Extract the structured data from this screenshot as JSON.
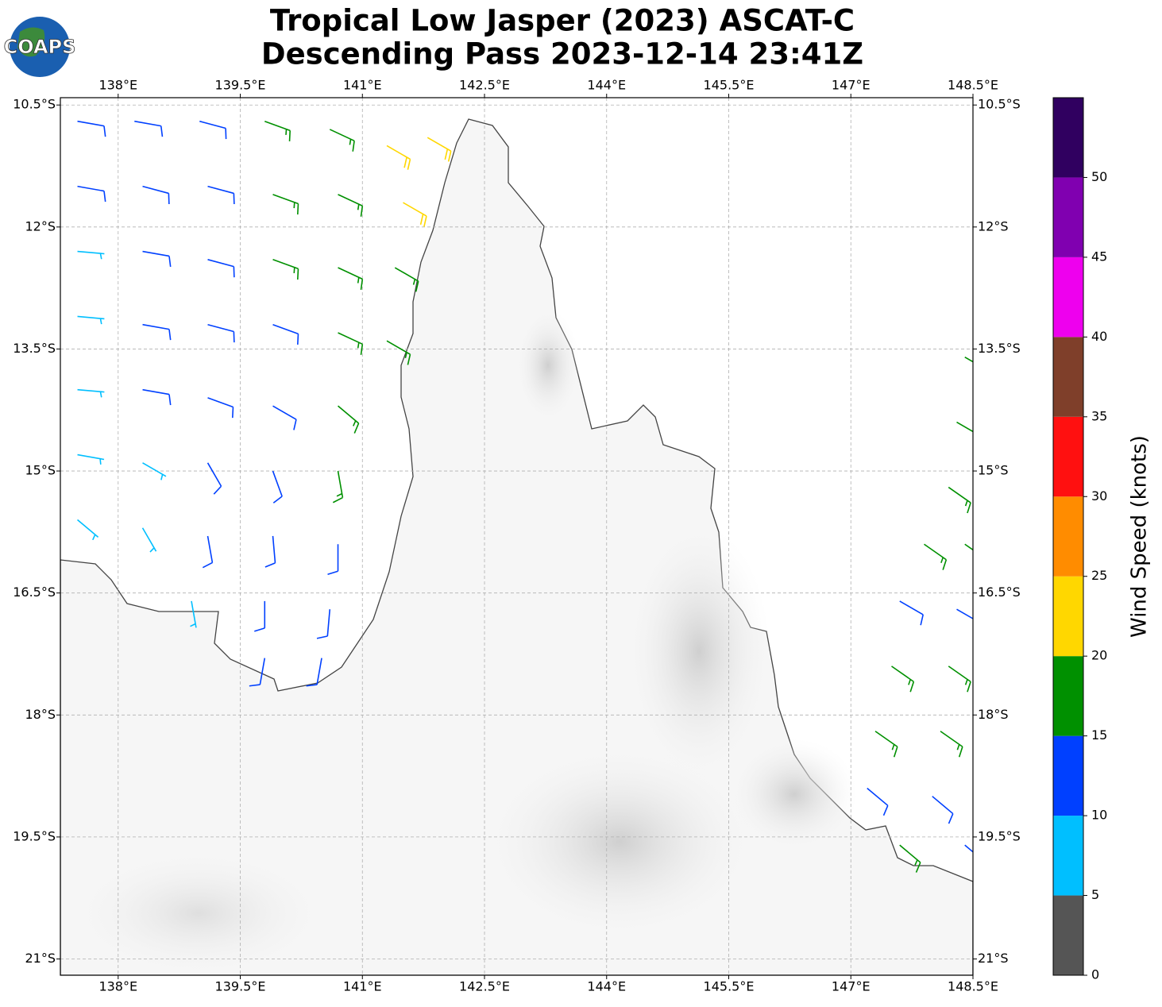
{
  "logo": {
    "text": "COAPS"
  },
  "chart_data": {
    "type": "barbs",
    "title": [
      "Tropical Low Jasper (2023) ASCAT-C",
      "Descending Pass 2023-12-14 23:41Z"
    ],
    "xlim": [
      137.29,
      148.5
    ],
    "ylim": [
      -21.2,
      -10.41
    ],
    "xticks": [
      {
        "value": 138,
        "label": "138°E"
      },
      {
        "value": 139.5,
        "label": "139.5°E"
      },
      {
        "value": 141,
        "label": "141°E"
      },
      {
        "value": 142.5,
        "label": "142.5°E"
      },
      {
        "value": 144,
        "label": "144°E"
      },
      {
        "value": 145.5,
        "label": "145.5°E"
      },
      {
        "value": 147,
        "label": "147°E"
      },
      {
        "value": 148.5,
        "label": "148.5°E"
      }
    ],
    "yticks": [
      {
        "value": -10.5,
        "label": "10.5°S"
      },
      {
        "value": -12,
        "label": "12°S"
      },
      {
        "value": -13.5,
        "label": "13.5°S"
      },
      {
        "value": -15,
        "label": "15°S"
      },
      {
        "value": -16.5,
        "label": "16.5°S"
      },
      {
        "value": -18,
        "label": "18°S"
      },
      {
        "value": -19.5,
        "label": "19.5°S"
      },
      {
        "value": -21,
        "label": "21°S"
      }
    ],
    "grid": true,
    "barbs": [
      [
        137.5,
        -10.7,
        12,
        100
      ],
      [
        138.2,
        -10.7,
        12,
        100
      ],
      [
        139.0,
        -10.7,
        14,
        105
      ],
      [
        139.8,
        -10.7,
        17,
        110
      ],
      [
        140.6,
        -10.8,
        18,
        115
      ],
      [
        141.3,
        -11.0,
        22,
        120
      ],
      [
        141.8,
        -10.9,
        23,
        120
      ],
      [
        137.5,
        -11.5,
        12,
        100
      ],
      [
        138.3,
        -11.5,
        12,
        105
      ],
      [
        139.1,
        -11.5,
        13,
        105
      ],
      [
        139.9,
        -11.6,
        17,
        110
      ],
      [
        140.7,
        -11.6,
        18,
        115
      ],
      [
        141.5,
        -11.7,
        21,
        120
      ],
      [
        137.5,
        -12.3,
        8,
        95
      ],
      [
        138.3,
        -12.3,
        12,
        100
      ],
      [
        139.1,
        -12.4,
        13,
        105
      ],
      [
        139.9,
        -12.4,
        16,
        110
      ],
      [
        140.7,
        -12.5,
        17,
        115
      ],
      [
        141.4,
        -12.5,
        16,
        120
      ],
      [
        137.5,
        -13.1,
        8,
        95
      ],
      [
        138.3,
        -13.2,
        12,
        100
      ],
      [
        139.1,
        -13.2,
        12,
        105
      ],
      [
        139.9,
        -13.2,
        14,
        110
      ],
      [
        140.7,
        -13.3,
        16,
        115
      ],
      [
        141.3,
        -13.4,
        17,
        120
      ],
      [
        137.5,
        -14.0,
        8,
        95
      ],
      [
        138.3,
        -14.0,
        11,
        100
      ],
      [
        139.1,
        -14.1,
        12,
        110
      ],
      [
        139.9,
        -14.2,
        13,
        120
      ],
      [
        140.7,
        -14.2,
        16,
        130
      ],
      [
        137.5,
        -14.8,
        7,
        100
      ],
      [
        138.3,
        -14.9,
        9,
        120
      ],
      [
        139.1,
        -14.9,
        11,
        150
      ],
      [
        139.9,
        -15.0,
        14,
        160
      ],
      [
        140.7,
        -15.0,
        16,
        170
      ],
      [
        137.5,
        -15.6,
        7,
        130
      ],
      [
        138.3,
        -15.7,
        8,
        150
      ],
      [
        139.1,
        -15.8,
        12,
        170
      ],
      [
        139.9,
        -15.8,
        13,
        175
      ],
      [
        140.7,
        -15.9,
        12,
        180
      ],
      [
        138.9,
        -16.6,
        8,
        170
      ],
      [
        139.8,
        -16.6,
        12,
        180
      ],
      [
        140.6,
        -16.7,
        12,
        185
      ],
      [
        139.8,
        -17.3,
        12,
        190
      ],
      [
        140.5,
        -17.3,
        11,
        190
      ],
      [
        148.4,
        -13.6,
        17,
        120
      ],
      [
        148.3,
        -14.4,
        17,
        120
      ],
      [
        148.2,
        -15.2,
        17,
        125
      ],
      [
        147.9,
        -15.9,
        17,
        125
      ],
      [
        148.4,
        -15.9,
        16,
        125
      ],
      [
        147.6,
        -16.6,
        12,
        120
      ],
      [
        148.3,
        -16.7,
        13,
        120
      ],
      [
        147.5,
        -17.4,
        16,
        125
      ],
      [
        148.2,
        -17.4,
        17,
        125
      ],
      [
        147.3,
        -18.2,
        16,
        125
      ],
      [
        148.1,
        -18.2,
        17,
        125
      ],
      [
        147.2,
        -18.9,
        12,
        130
      ],
      [
        148.0,
        -19.0,
        14,
        130
      ],
      [
        147.6,
        -19.6,
        17,
        130
      ],
      [
        148.4,
        -19.6,
        12,
        130
      ]
    ],
    "colorbar": {
      "label": "Wind Speed (knots)",
      "lim": [
        0,
        55
      ],
      "ticks": [
        0,
        5,
        10,
        15,
        20,
        25,
        30,
        35,
        40,
        45,
        50
      ],
      "colors": [
        "#555555",
        "#00bfff",
        "#0040ff",
        "#009000",
        "#ffd700",
        "#ff8c00",
        "#ff1010",
        "#7f3f2a",
        "#ee00ee",
        "#8000b0",
        "#300060"
      ]
    }
  }
}
